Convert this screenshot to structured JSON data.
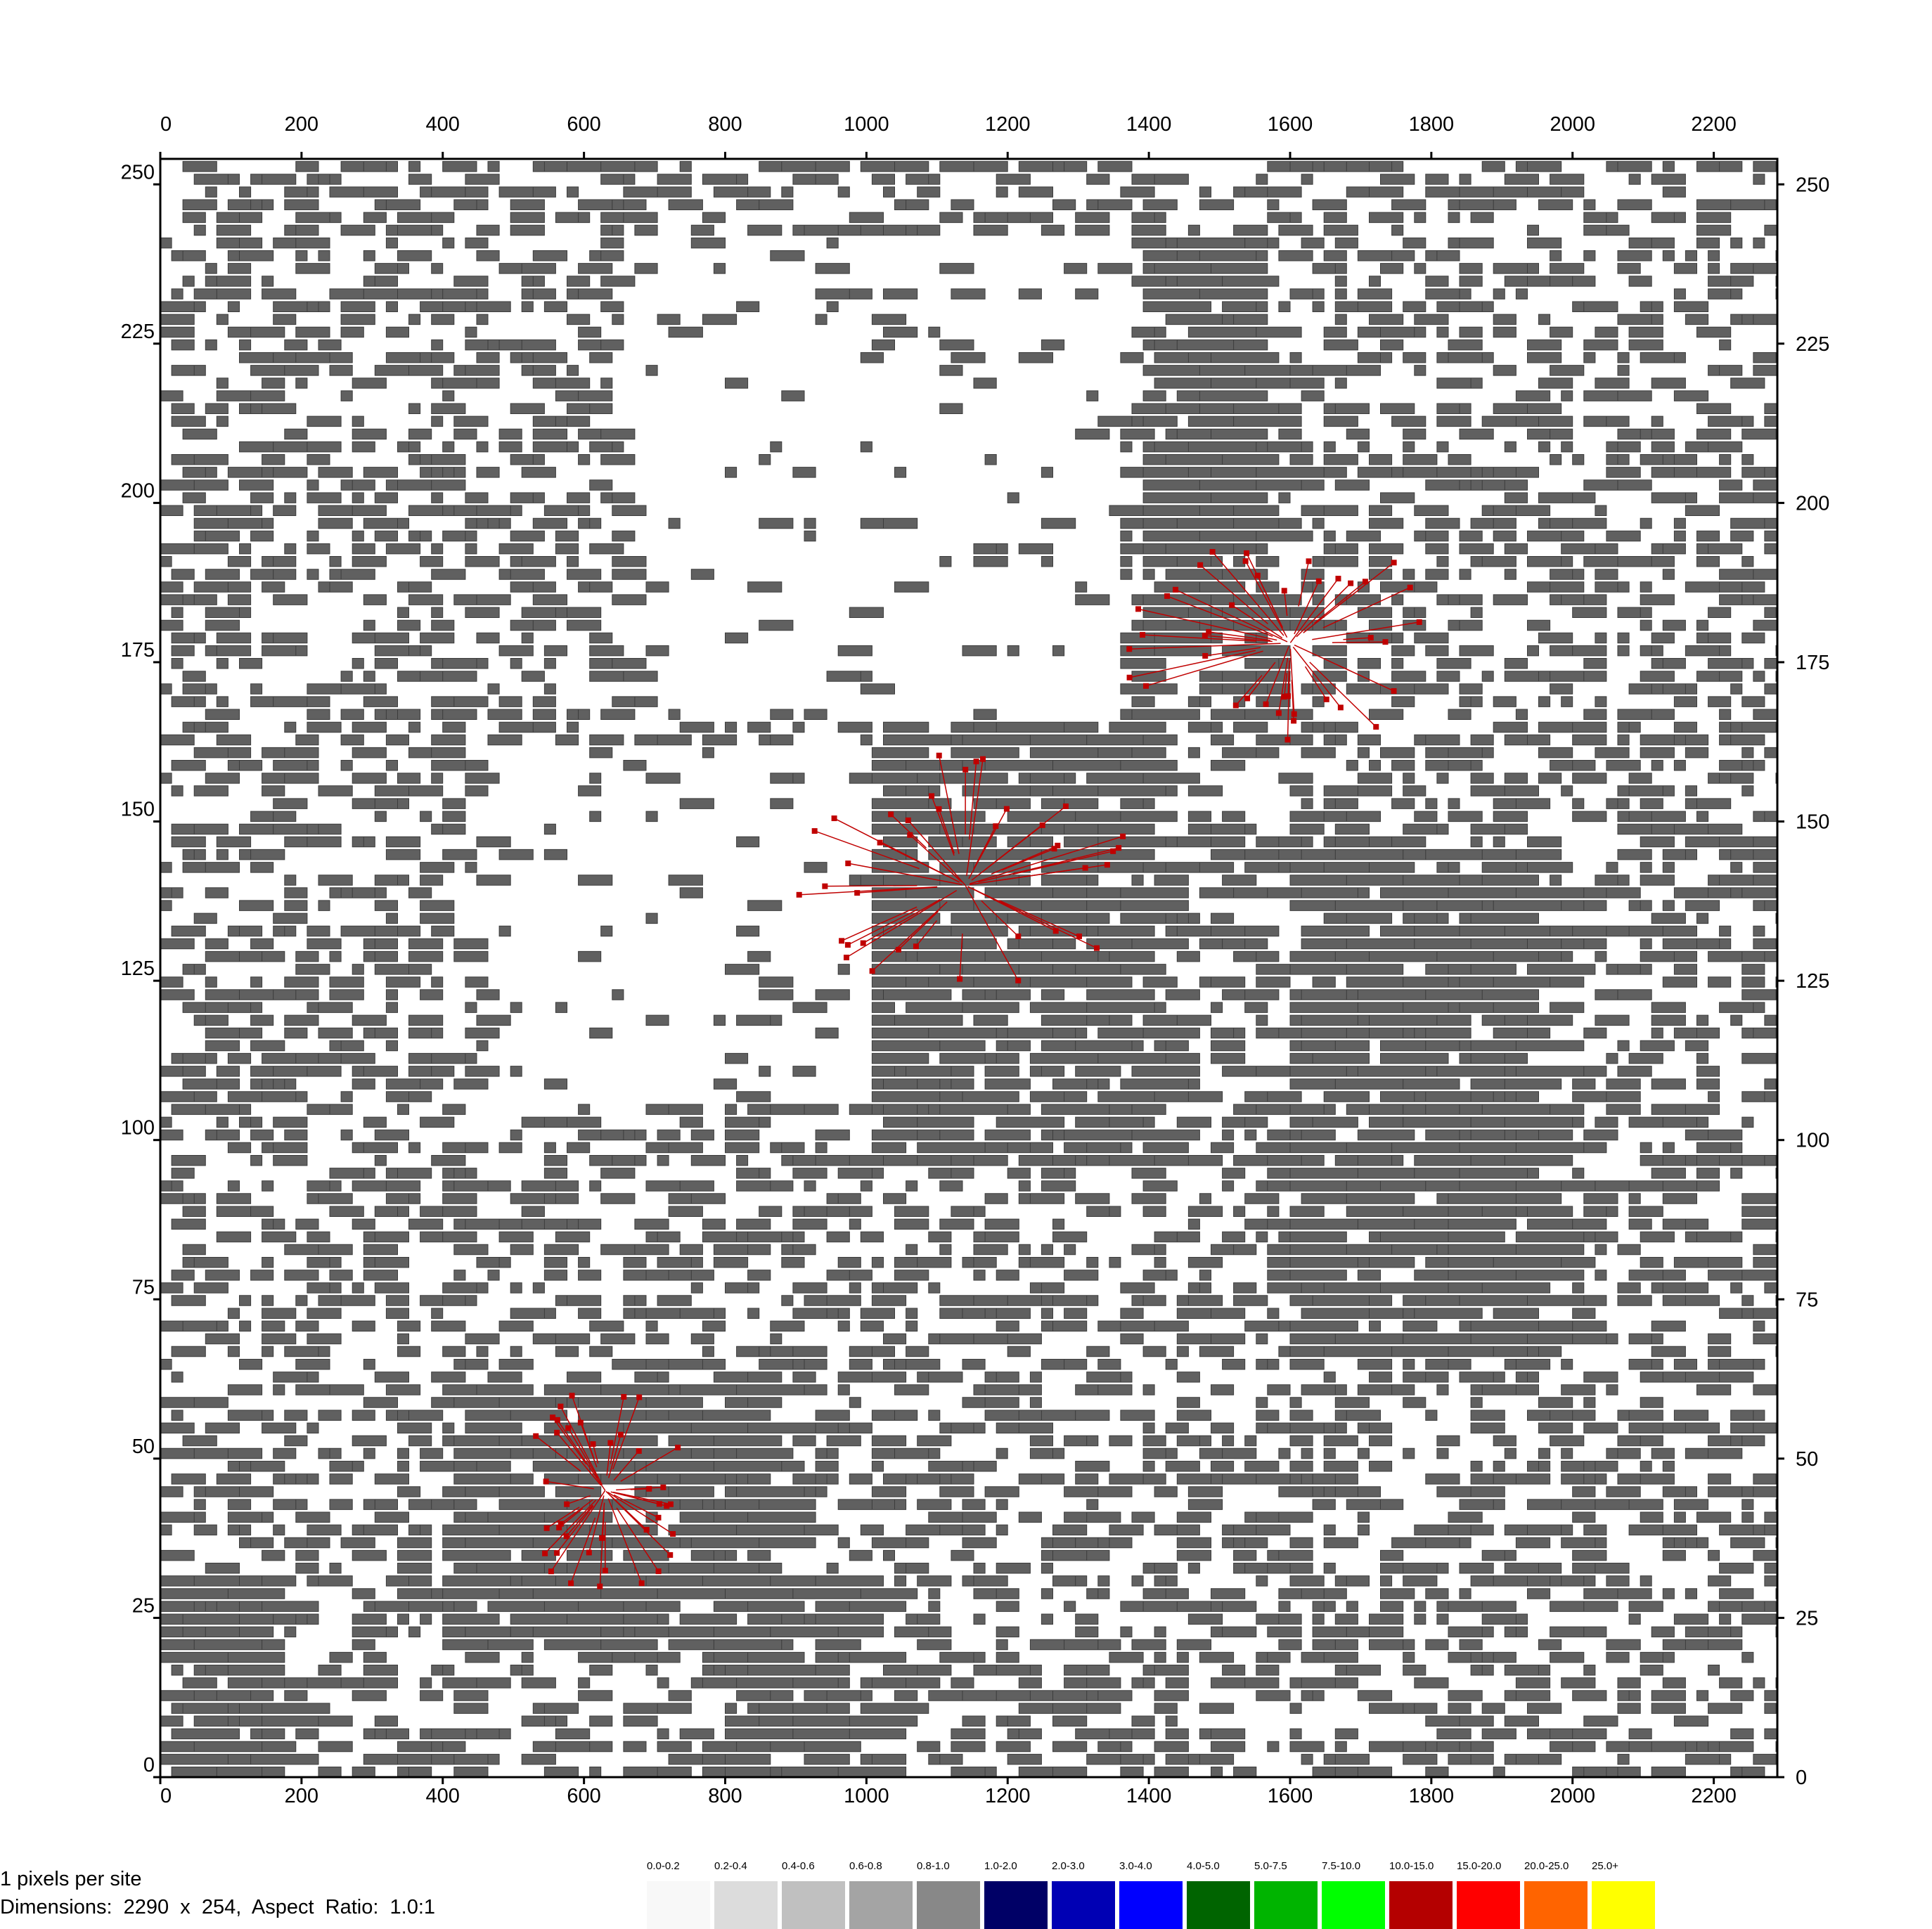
{
  "chart_data": {
    "type": "heatmap",
    "title": "",
    "xlabel": "",
    "ylabel": "",
    "xlim": [
      0,
      2290
    ],
    "ylim": [
      0,
      254
    ],
    "x_ticks": [
      "0",
      "200",
      "400",
      "600",
      "800",
      "1000",
      "1200",
      "1400",
      "1600",
      "1800",
      "2000",
      "2200"
    ],
    "x_tick_values": [
      0,
      200,
      400,
      600,
      800,
      1000,
      1200,
      1400,
      1600,
      1800,
      2000,
      2200
    ],
    "y_ticks": [
      "0",
      "25",
      "50",
      "75",
      "100",
      "125",
      "150",
      "175",
      "200",
      "225",
      "250"
    ],
    "y_tick_values": [
      0,
      25,
      50,
      75,
      100,
      125,
      150,
      175,
      200,
      225,
      250
    ],
    "background_color": "#ffffff",
    "cell_color": "#606060",
    "line_color": "#c00000",
    "legend": [
      {
        "label": "0.0-0.2",
        "color": "#f8f8f8"
      },
      {
        "label": "0.2-0.4",
        "color": "#dcdcdc"
      },
      {
        "label": "0.4-0.6",
        "color": "#c0c0c0"
      },
      {
        "label": "0.6-0.8",
        "color": "#a4a4a4"
      },
      {
        "label": "0.8-1.0",
        "color": "#888888"
      },
      {
        "label": "1.0-2.0",
        "color": "#000066"
      },
      {
        "label": "2.0-3.0",
        "color": "#0000b4"
      },
      {
        "label": "3.0-4.0",
        "color": "#0000ff"
      },
      {
        "label": "4.0-5.0",
        "color": "#006400"
      },
      {
        "label": "5.0-7.5",
        "color": "#00b400"
      },
      {
        "label": "7.5-10.0",
        "color": "#00ff00"
      },
      {
        "label": "10.0-15.0",
        "color": "#b40000"
      },
      {
        "label": "15.0-20.0",
        "color": "#ff0000"
      },
      {
        "label": "20.0-25.0",
        "color": "#ff6400"
      },
      {
        "label": "25.0+",
        "color": "#ffff00"
      }
    ],
    "dense_regions": [
      {
        "x": [
          1380,
          1560
        ],
        "y": [
          175,
          240
        ]
      },
      {
        "x": [
          1000,
          1400
        ],
        "y": [
          95,
          175
        ]
      },
      {
        "x": [
          400,
          850
        ],
        "y": [
          20,
          60
        ]
      },
      {
        "x": [
          1600,
          1950
        ],
        "y": [
          65,
          145
        ]
      },
      {
        "x": [
          800,
          1000
        ],
        "y": [
          0,
          30
        ]
      },
      {
        "x": [
          0,
          150
        ],
        "y": [
          0,
          30
        ]
      }
    ],
    "void_regions": [
      {
        "x": [
          450,
          1000
        ],
        "y": [
          105,
          160
        ]
      },
      {
        "x": [
          650,
          1350
        ],
        "y": [
          165,
          240
        ]
      }
    ],
    "red_clusters": [
      {
        "cx": 1600,
        "cy": 178,
        "rx": 220,
        "ry": 15
      },
      {
        "cx": 1140,
        "cy": 140,
        "rx": 220,
        "ry": 20
      },
      {
        "cx": 630,
        "cy": 45,
        "rx": 110,
        "ry": 15
      }
    ]
  },
  "footer": {
    "pixels_per_site": "1 pixels per site",
    "dimensions": "Dimensions:  2290  x  254,  Aspect  Ratio:  1.0:1"
  }
}
